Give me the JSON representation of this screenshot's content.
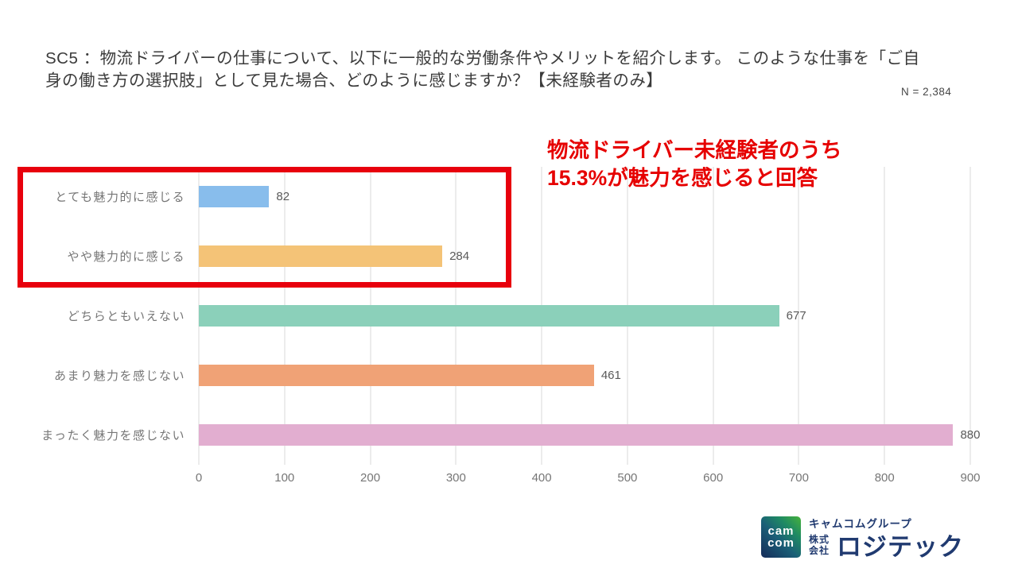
{
  "slide": {
    "title": "SC5 ：物流ドライバーの仕事について、以下に一般的な労働条件やメリットを紹介します。 このような仕事を「ご自身の働き方の選択肢」として見た場合、どのように感じますか？【未経験者のみ】",
    "sample_size_label": "N = 2,384",
    "annotation": {
      "line1": "物流ドライバー未経験者のうち",
      "line2": "15.3%が魅力を感じると回答",
      "color": "#e60000"
    }
  },
  "chart_data": {
    "type": "bar",
    "orientation": "horizontal",
    "categories": [
      "とても魅力的に感じる",
      "やや魅力的に感じる",
      "どちらともいえない",
      "あまり魅力を感じない",
      "まったく魅力を感じない"
    ],
    "values": [
      82,
      284,
      677,
      461,
      880
    ],
    "bar_colors": [
      "#88bdec",
      "#f4c377",
      "#8bd0ba",
      "#f0a276",
      "#e2aed0"
    ],
    "xlim": [
      0,
      900
    ],
    "xticks": [
      0,
      100,
      200,
      300,
      400,
      500,
      600,
      700,
      800,
      900
    ],
    "grid": "vertical-gridlines-on",
    "legend": "none",
    "title": "",
    "xlabel": "",
    "ylabel": "",
    "highlight_box": {
      "note": "red outline around first two bars",
      "color": "#e8000d"
    }
  },
  "logo": {
    "mark_line1": "cam",
    "mark_line2": "com",
    "group_name": "キャムコムグループ",
    "company_prefix_line1": "株式",
    "company_prefix_line2": "会社",
    "company_name": "ロジテック",
    "brand_color": "#203a70"
  }
}
